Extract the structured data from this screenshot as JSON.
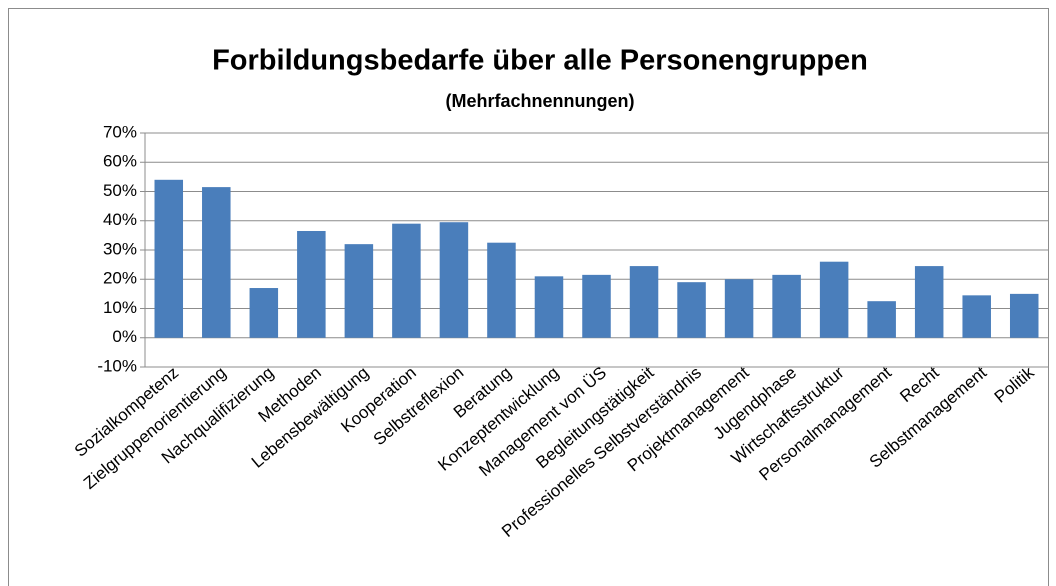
{
  "chart_data": {
    "type": "bar",
    "title": "Forbildungsbedarfe über alle Personengruppen",
    "subtitle": "(Mehrfachnennungen)",
    "categories": [
      "Sozialkompetenz",
      "Zielgruppenorientierung",
      "Nachqualifizierung",
      "Methoden",
      "Lebensbewältigung",
      "Kooperation",
      "Selbstreflexion",
      "Beratung",
      "Konzeptentwicklung",
      "Management von ÜS",
      "Begleitungstätigkeit",
      "Professionelles Selbstverständnis",
      "Projektmanagement",
      "Jugendphase",
      "Wirtschaftsstruktur",
      "Personalmanagement",
      "Recht",
      "Selbstmanagement",
      "Politik"
    ],
    "values": [
      54,
      51.5,
      17,
      36.5,
      32,
      39,
      39.5,
      32.5,
      21,
      21.5,
      24.5,
      19,
      20,
      21.5,
      26,
      12.5,
      24.5,
      14.5,
      15
    ],
    "color": "#4a7ebb",
    "ylim": [
      -10,
      70
    ],
    "yticks": [
      {
        "value": -10,
        "label": "-10%"
      },
      {
        "value": 0,
        "label": "0%"
      },
      {
        "value": 10,
        "label": "10%"
      },
      {
        "value": 20,
        "label": "20%"
      },
      {
        "value": 30,
        "label": "30%"
      },
      {
        "value": 40,
        "label": "40%"
      },
      {
        "value": 50,
        "label": "50%"
      },
      {
        "value": 60,
        "label": "60%"
      },
      {
        "value": 70,
        "label": "70%"
      }
    ],
    "grid": true
  }
}
